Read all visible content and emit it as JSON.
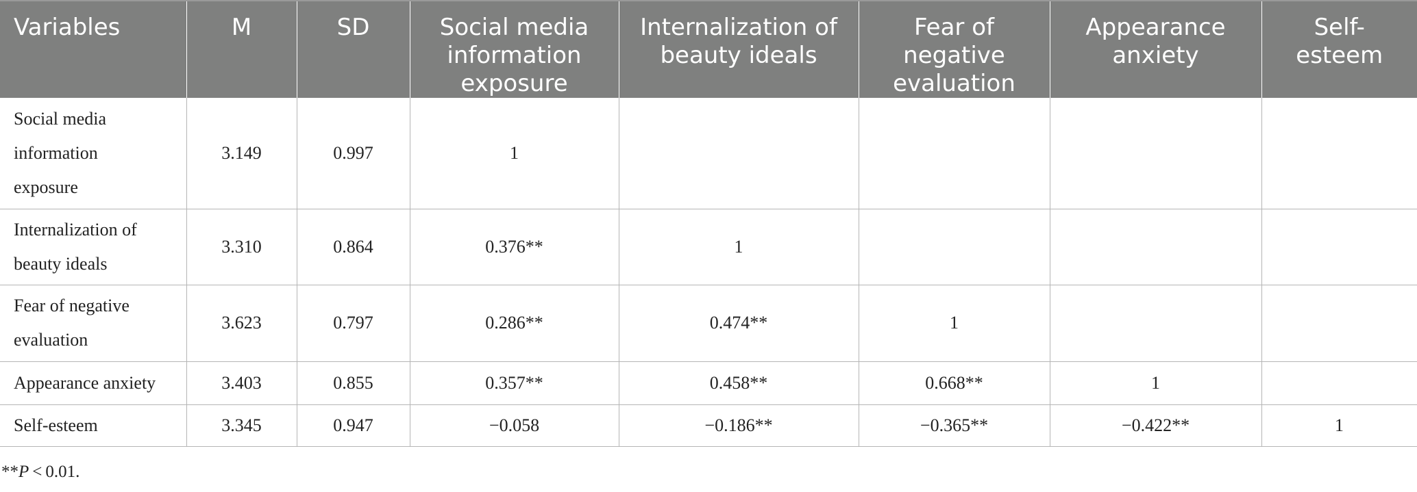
{
  "headers": [
    "Variables",
    "M",
    "SD",
    "Social media information exposure",
    "Internalization of beauty ideals",
    "Fear of negative evaluation",
    "Appearance anxiety",
    "Self-esteem"
  ],
  "header_display": {
    "h3": [
      "Social media",
      "information",
      "exposure"
    ],
    "h4": [
      "Internalization of",
      "beauty ideals"
    ],
    "h5": [
      "Fear of",
      "negative",
      "evaluation"
    ],
    "h6": [
      "Appearance",
      "anxiety"
    ],
    "h7": [
      "Self-",
      "esteem"
    ]
  },
  "rows": [
    {
      "variable": [
        "Social media",
        "information",
        "exposure"
      ],
      "M": "3.149",
      "SD": "0.997",
      "c1": "1",
      "c2": "",
      "c3": "",
      "c4": "",
      "c5": ""
    },
    {
      "variable": [
        "Internalization of",
        "beauty ideals"
      ],
      "M": "3.310",
      "SD": "0.864",
      "c1": "0.376**",
      "c2": "1",
      "c3": "",
      "c4": "",
      "c5": ""
    },
    {
      "variable": [
        "Fear of negative",
        "evaluation"
      ],
      "M": "3.623",
      "SD": "0.797",
      "c1": "0.286**",
      "c2": "0.474**",
      "c3": "1",
      "c4": "",
      "c5": ""
    },
    {
      "variable": [
        "Appearance anxiety"
      ],
      "M": "3.403",
      "SD": "0.855",
      "c1": "0.357**",
      "c2": "0.458**",
      "c3": "0.668**",
      "c4": "1",
      "c5": ""
    },
    {
      "variable": [
        "Self-esteem"
      ],
      "M": "3.345",
      "SD": "0.947",
      "c1": "−0.058",
      "c2": "−0.186**",
      "c3": "−0.365**",
      "c4": "−0.422**",
      "c5": "1"
    }
  ],
  "footnote": {
    "prefix": "**",
    "italic": "P",
    "suffix": " < 0.01."
  }
}
